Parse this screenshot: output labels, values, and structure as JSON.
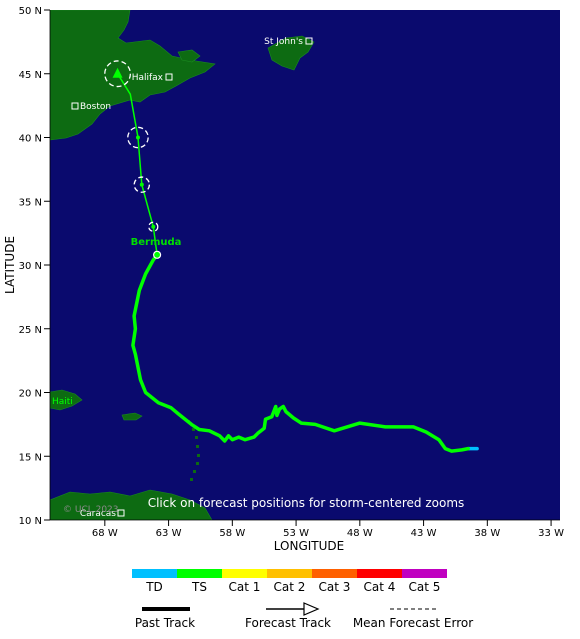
{
  "axes": {
    "xlabel": "LONGITUDE",
    "ylabel": "LATITUDE",
    "lon_ticks": [
      "68 W",
      "63 W",
      "58 W",
      "53 W",
      "48 W",
      "43 W",
      "38 W",
      "33 W"
    ],
    "lat_ticks": [
      "50 N",
      "45 N",
      "40 N",
      "35 N",
      "30 N",
      "25 N",
      "20 N",
      "15 N",
      "10 N"
    ]
  },
  "cities": [
    {
      "name": "St John's",
      "id": "st-johns"
    },
    {
      "name": "Halifax",
      "id": "halifax"
    },
    {
      "name": "Boston",
      "id": "boston"
    },
    {
      "name": "Caracas",
      "id": "caracas"
    }
  ],
  "bermuda_label": "Bermuda",
  "haiti_label": "Haiti",
  "click_note": "Click on forecast positions for storm-centered zooms",
  "copyright": "© UCL 2023",
  "intensity_scale": [
    {
      "label": "TD",
      "color": "#00c0ff"
    },
    {
      "label": "TS",
      "color": "#00ff00"
    },
    {
      "label": "Cat 1",
      "color": "#ffff00"
    },
    {
      "label": "Cat 2",
      "color": "#ffc000"
    },
    {
      "label": "Cat 3",
      "color": "#ff6000"
    },
    {
      "label": "Cat 4",
      "color": "#ff0000"
    },
    {
      "label": "Cat 5",
      "color": "#c000c0"
    }
  ],
  "track_legend": {
    "past": "Past Track",
    "forecast": "Forecast Track",
    "error": "Mean Forecast Error"
  },
  "colors": {
    "ocean": "#0a0a6e",
    "land": "#0d6b12",
    "track": "#00ff00",
    "track_td": "#00c0ff"
  },
  "storm_track": {
    "past": [
      [
        -38.8,
        15.6
      ],
      [
        -39.5,
        15.6
      ],
      [
        -40.0,
        15.5
      ],
      [
        -40.8,
        15.4
      ],
      [
        -41.3,
        15.6
      ],
      [
        -41.8,
        16.3
      ],
      [
        -42.8,
        16.9
      ],
      [
        -43.8,
        17.3
      ],
      [
        -46.0,
        17.3
      ],
      [
        -48.0,
        17.6
      ],
      [
        -50.0,
        17.0
      ],
      [
        -51.5,
        17.5
      ],
      [
        -52.6,
        17.6
      ],
      [
        -53.2,
        18.0
      ],
      [
        -53.8,
        18.5
      ],
      [
        -54.0,
        18.9
      ],
      [
        -54.3,
        18.7
      ],
      [
        -54.5,
        18.2
      ],
      [
        -54.6,
        18.9
      ],
      [
        -54.9,
        18.1
      ],
      [
        -55.4,
        17.9
      ],
      [
        -55.5,
        17.2
      ],
      [
        -56.0,
        16.8
      ],
      [
        -56.3,
        16.5
      ],
      [
        -57.0,
        16.3
      ],
      [
        -57.5,
        16.5
      ],
      [
        -58.0,
        16.3
      ],
      [
        -58.3,
        16.6
      ],
      [
        -58.6,
        16.2
      ],
      [
        -59.0,
        16.6
      ],
      [
        -59.8,
        17.0
      ],
      [
        -60.6,
        17.1
      ],
      [
        -61.2,
        17.5
      ],
      [
        -62.2,
        18.3
      ],
      [
        -62.8,
        18.8
      ],
      [
        -63.8,
        19.2
      ],
      [
        -64.8,
        20.0
      ],
      [
        -65.2,
        21.0
      ],
      [
        -65.6,
        23.0
      ],
      [
        -65.8,
        23.7
      ],
      [
        -65.6,
        25.0
      ],
      [
        -65.7,
        26.0
      ],
      [
        -65.3,
        28.0
      ],
      [
        -64.8,
        29.3
      ],
      [
        -64.2,
        30.4
      ],
      [
        -63.9,
        30.8
      ]
    ],
    "forecast": [
      [
        -63.9,
        30.8
      ],
      [
        -64.2,
        33.0
      ],
      [
        -65.1,
        36.3
      ],
      [
        -65.4,
        40.0
      ],
      [
        -66.0,
        43.4
      ],
      [
        -67.0,
        45.0
      ]
    ],
    "forecast_points": [
      {
        "lon": -64.2,
        "lat": 33.0,
        "err": 0.35
      },
      {
        "lon": -65.1,
        "lat": 36.3,
        "err": 0.6
      },
      {
        "lon": -65.4,
        "lat": 40.0,
        "err": 0.8
      },
      {
        "lon": -67.0,
        "lat": 45.0,
        "err": 1.0
      }
    ],
    "current": {
      "lon": -63.9,
      "lat": 30.8
    }
  }
}
